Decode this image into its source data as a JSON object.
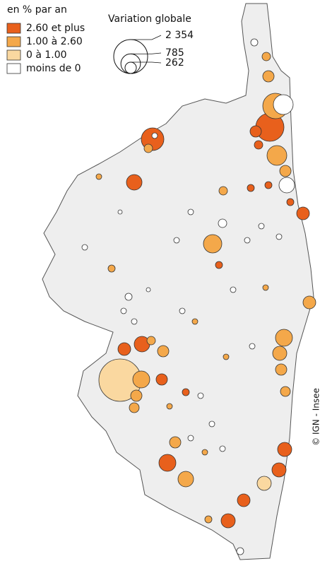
{
  "legend": {
    "title": "en % par an",
    "classes": [
      {
        "label": "2.60 et plus",
        "color": "#e8601c"
      },
      {
        "label": "1.00 à 2.60",
        "color": "#f4a84a"
      },
      {
        "label": "0 à 1.00",
        "color": "#fad8a0"
      },
      {
        "label": "moins de 0",
        "color": "#ffffff"
      }
    ]
  },
  "size_legend": {
    "title": "Variation globale",
    "values": [
      {
        "value": 2354,
        "label": "2 354"
      },
      {
        "value": 785,
        "label": "785"
      },
      {
        "value": 262,
        "label": "262"
      }
    ]
  },
  "credit": "© IGN - Insee"
}
